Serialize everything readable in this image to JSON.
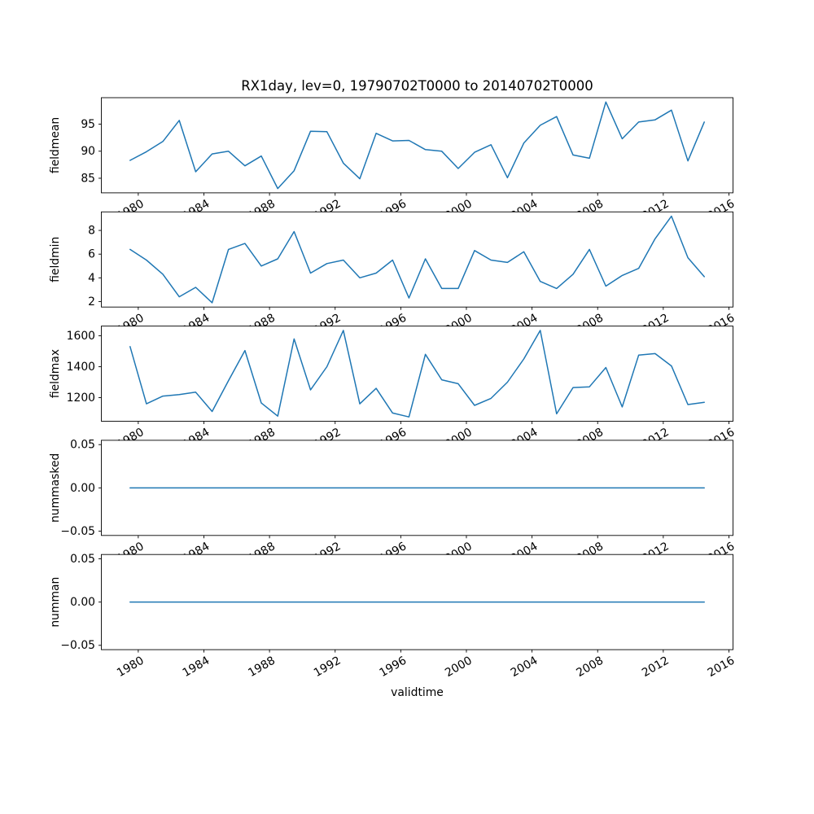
{
  "title": "RX1day, lev=0, 19790702T0000 to 20140702T0000",
  "xlabel": "validtime",
  "colors": {
    "line": "#1f77b4",
    "axes": "#000000",
    "background": "#ffffff"
  },
  "chart_data": {
    "type": "line",
    "title": "RX1day, lev=0, 19790702T0000 to 20140702T0000",
    "xlabel": "validtime",
    "grid": false,
    "legend": null,
    "marker": "none",
    "line_color": "#1f77b4",
    "line_width": 1.5,
    "x_note": "one value per year, dated July 2 (plotted at mid-year)",
    "x": [
      1979,
      1980,
      1981,
      1982,
      1983,
      1984,
      1985,
      1986,
      1987,
      1988,
      1989,
      1990,
      1991,
      1992,
      1993,
      1994,
      1995,
      1996,
      1997,
      1998,
      1999,
      2000,
      2001,
      2002,
      2003,
      2004,
      2005,
      2006,
      2007,
      2008,
      2009,
      2010,
      2011,
      2012,
      2013,
      2014
    ],
    "xlim": [
      1977.75,
      2016.25
    ],
    "xticks": [
      1980,
      1984,
      1988,
      1992,
      1996,
      2000,
      2004,
      2008,
      2012,
      2016
    ],
    "x_tick_rotation": 30,
    "subplots": [
      {
        "ylabel": "fieldmean",
        "yticks": [
          85,
          90,
          95
        ],
        "ylim": [
          82.3,
          99.9
        ],
        "values": [
          88.3,
          89.9,
          91.8,
          95.7,
          86.2,
          89.5,
          90.0,
          87.3,
          89.1,
          83.1,
          86.4,
          93.7,
          93.6,
          87.8,
          84.9,
          93.3,
          91.9,
          92.0,
          90.3,
          90.0,
          86.8,
          89.8,
          91.2,
          85.1,
          91.5,
          94.8,
          96.4,
          89.3,
          88.7,
          99.1,
          92.3,
          95.4,
          95.8,
          97.6,
          88.2,
          95.4
        ]
      },
      {
        "ylabel": "fieldmin",
        "yticks": [
          2,
          4,
          6,
          8
        ],
        "ylim": [
          1.535,
          9.565
        ],
        "values": [
          6.4,
          5.5,
          4.3,
          2.4,
          3.2,
          1.9,
          6.4,
          6.9,
          5.0,
          5.6,
          7.9,
          4.4,
          5.2,
          5.5,
          4.0,
          4.4,
          5.5,
          2.3,
          5.6,
          3.1,
          3.1,
          6.3,
          5.5,
          5.3,
          6.2,
          3.7,
          3.1,
          4.3,
          6.4,
          3.3,
          4.2,
          4.8,
          7.3,
          9.2,
          5.7,
          4.1
        ]
      },
      {
        "ylabel": "fieldmax",
        "yticks": [
          1200,
          1400,
          1600
        ],
        "ylim": [
          1047,
          1663
        ],
        "values": [
          1530,
          1160,
          1210,
          1220,
          1235,
          1110,
          1310,
          1505,
          1165,
          1080,
          1580,
          1250,
          1400,
          1635,
          1160,
          1260,
          1100,
          1075,
          1480,
          1315,
          1290,
          1150,
          1195,
          1300,
          1450,
          1635,
          1095,
          1265,
          1270,
          1395,
          1140,
          1475,
          1485,
          1405,
          1155,
          1170
        ]
      },
      {
        "ylabel": "nummasked",
        "yticks": [
          -0.05,
          0.0,
          0.05
        ],
        "ytick_labels": [
          "−0.05",
          "0.00",
          "0.05"
        ],
        "ylim": [
          -0.055,
          0.055
        ],
        "values": [
          0,
          0,
          0,
          0,
          0,
          0,
          0,
          0,
          0,
          0,
          0,
          0,
          0,
          0,
          0,
          0,
          0,
          0,
          0,
          0,
          0,
          0,
          0,
          0,
          0,
          0,
          0,
          0,
          0,
          0,
          0,
          0,
          0,
          0,
          0,
          0
        ]
      },
      {
        "ylabel": "numman",
        "yticks": [
          -0.05,
          0.0,
          0.05
        ],
        "ytick_labels": [
          "−0.05",
          "0.00",
          "0.05"
        ],
        "ylim": [
          -0.055,
          0.055
        ],
        "values": [
          0,
          0,
          0,
          0,
          0,
          0,
          0,
          0,
          0,
          0,
          0,
          0,
          0,
          0,
          0,
          0,
          0,
          0,
          0,
          0,
          0,
          0,
          0,
          0,
          0,
          0,
          0,
          0,
          0,
          0,
          0,
          0,
          0,
          0,
          0,
          0
        ]
      }
    ]
  }
}
